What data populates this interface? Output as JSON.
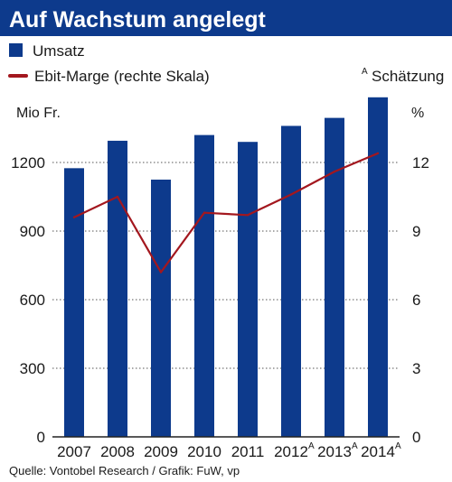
{
  "title": "Auf Wachstum angelegt",
  "legend": {
    "bars_label": "Umsatz",
    "line_label": "Ebit-Marge (rechte Skala)",
    "estimate_marker": "A",
    "estimate_label": "Schätzung"
  },
  "source": "Quelle: Vontobel Research / Grafik: FuW, vp",
  "colors": {
    "title_bg": "#0d3a8c",
    "bar": "#0d3a8c",
    "line": "#a3171e",
    "grid": "#555555"
  },
  "chart_data": {
    "type": "bar",
    "categories": [
      "2007",
      "2008",
      "2009",
      "2010",
      "2011",
      "2012",
      "2013",
      "2014"
    ],
    "estimated": [
      false,
      false,
      false,
      false,
      false,
      true,
      true,
      true
    ],
    "series": [
      {
        "name": "Umsatz",
        "type": "bar",
        "axis": "left",
        "values": [
          1175,
          1295,
          1125,
          1320,
          1290,
          1360,
          1395,
          1485
        ]
      },
      {
        "name": "Ebit-Marge (rechte Skala)",
        "type": "line",
        "axis": "right",
        "values": [
          9.6,
          10.5,
          7.2,
          9.8,
          9.7,
          10.6,
          11.6,
          12.4
        ]
      }
    ],
    "y_left": {
      "label": "Mio Fr.",
      "ticks": [
        0,
        300,
        600,
        900,
        1200
      ],
      "range": [
        0,
        1500
      ]
    },
    "y_right": {
      "label": "%",
      "ticks": [
        0,
        3,
        6,
        9,
        12
      ],
      "range": [
        0,
        15
      ]
    },
    "grid": "dotted horizontal"
  }
}
